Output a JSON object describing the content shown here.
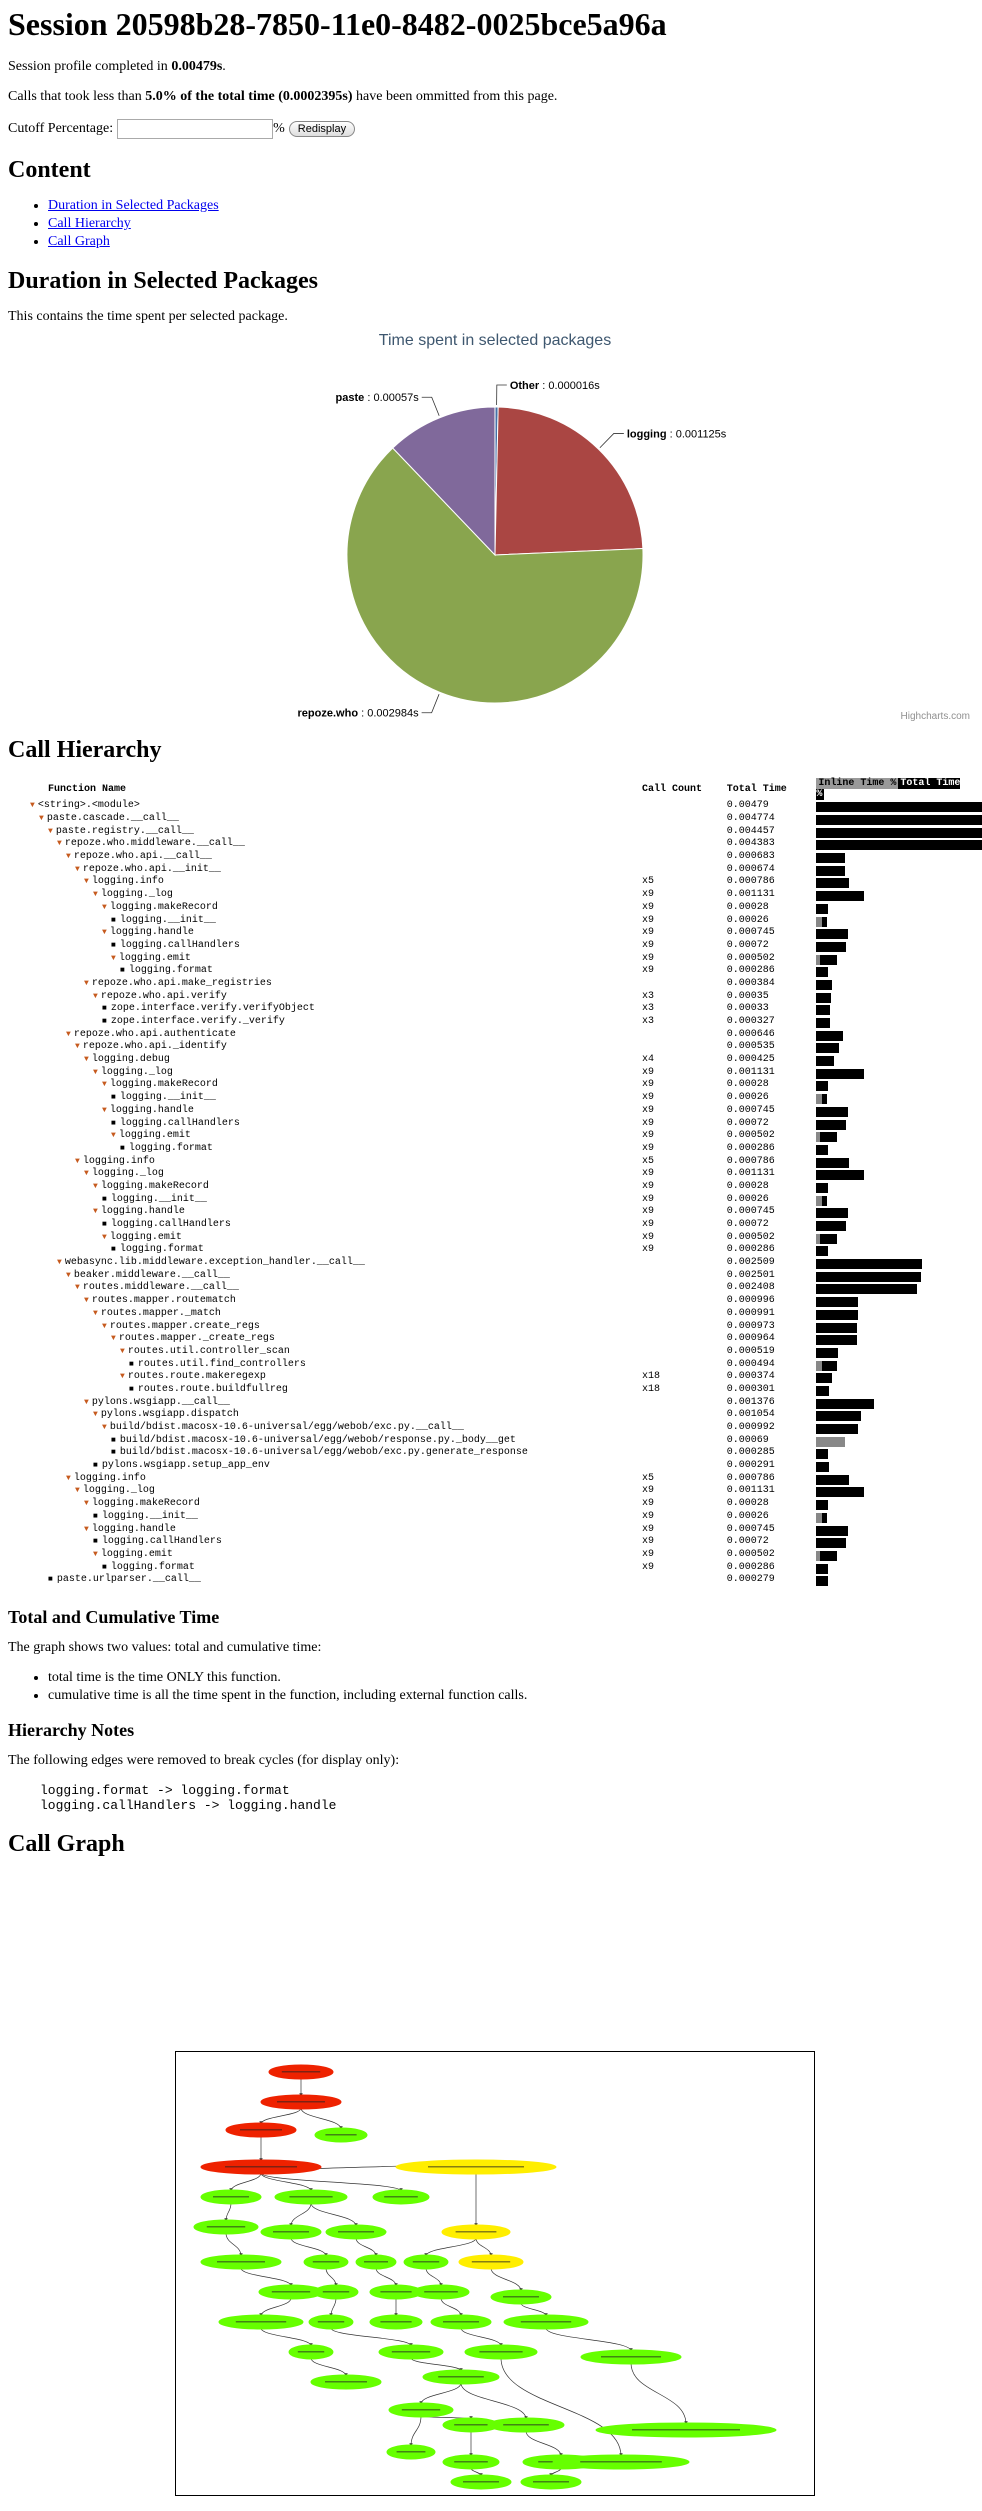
{
  "title": "Session 20598b28-7850-11e0-8482-0025bce5a96a",
  "profile_prefix": "Session profile completed in ",
  "profile_time": "0.00479s",
  "profile_suffix": ".",
  "calls_prefix": "Calls that took less than ",
  "calls_bold": "5.0% of the total time (0.0002395s)",
  "calls_suffix": " have been ommitted from this page.",
  "cutoff": {
    "label": "Cutoff Percentage:",
    "value": "",
    "percent": "%",
    "button": "Redisplay"
  },
  "content": {
    "heading": "Content",
    "links": [
      "Duration in Selected Packages",
      "Call Hierarchy",
      "Call Graph"
    ]
  },
  "duration": {
    "heading": "Duration in Selected Packages",
    "text": "This contains the time spent per selected package."
  },
  "chart_data": {
    "type": "pie",
    "title": "Time spent in selected packages",
    "credit": "Highcharts.com",
    "slices": [
      {
        "name": "Other",
        "value": 1.6e-05,
        "label": "0.000016s",
        "color": "#4572A7"
      },
      {
        "name": "logging",
        "value": 0.001125,
        "label": "0.001125s",
        "color": "#AA4643"
      },
      {
        "name": "repoze.who",
        "value": 0.002984,
        "label": "0.002984s",
        "color": "#89A54E"
      },
      {
        "name": "paste",
        "value": 0.00057,
        "label": "0.00057s",
        "color": "#80699B"
      }
    ]
  },
  "hierarchy": {
    "heading": "Call Hierarchy",
    "columns": [
      "Function Name",
      "Call Count",
      "Total Time",
      "Inline Time %",
      "Total Time %"
    ],
    "rows": [
      {
        "name": "<string>.<module>",
        "indent": 0,
        "mark": "tri",
        "count": "",
        "total": "0.00479",
        "pct": 100,
        "inline": 0
      },
      {
        "name": "paste.cascade.__call__",
        "indent": 1,
        "mark": "tri",
        "count": "",
        "total": "0.004774",
        "pct": 99.7,
        "inline": 0
      },
      {
        "name": "paste.registry.__call__",
        "indent": 2,
        "mark": "tri",
        "count": "",
        "total": "0.004457",
        "pct": 93,
        "inline": 0
      },
      {
        "name": "repoze.who.middleware.__call__",
        "indent": 3,
        "mark": "tri",
        "count": "",
        "total": "0.004383",
        "pct": 91.5,
        "inline": 0
      },
      {
        "name": "repoze.who.api.__call__",
        "indent": 4,
        "mark": "tri",
        "count": "",
        "total": "0.000683",
        "pct": 14.3,
        "inline": 0
      },
      {
        "name": "repoze.who.api.__init__",
        "indent": 5,
        "mark": "tri",
        "count": "",
        "total": "0.000674",
        "pct": 14.1,
        "inline": 0
      },
      {
        "name": "logging.info",
        "indent": 6,
        "mark": "tri",
        "count": "x5",
        "total": "0.000786",
        "pct": 16.4,
        "inline": 0
      },
      {
        "name": "logging._log",
        "indent": 7,
        "mark": "tri",
        "count": "x9",
        "total": "0.001131",
        "pct": 23.6,
        "inline": 0
      },
      {
        "name": "logging.makeRecord",
        "indent": 8,
        "mark": "tri",
        "count": "x9",
        "total": "0.00028",
        "pct": 5.8,
        "inline": 0
      },
      {
        "name": "logging.__init__",
        "indent": 9,
        "mark": "dot",
        "count": "x9",
        "total": "0.00026",
        "pct": 5.4,
        "inline": 3
      },
      {
        "name": "logging.handle",
        "indent": 8,
        "mark": "tri",
        "count": "x9",
        "total": "0.000745",
        "pct": 15.6,
        "inline": 0
      },
      {
        "name": "logging.callHandlers",
        "indent": 9,
        "mark": "dot",
        "count": "x9",
        "total": "0.00072",
        "pct": 15,
        "inline": 0
      },
      {
        "name": "logging.emit",
        "indent": 9,
        "mark": "tri",
        "count": "x9",
        "total": "0.000502",
        "pct": 10.5,
        "inline": 2
      },
      {
        "name": "logging.format",
        "indent": 10,
        "mark": "dot",
        "count": "x9",
        "total": "0.000286",
        "pct": 6,
        "inline": 0
      },
      {
        "name": "repoze.who.api.make_registries",
        "indent": 6,
        "mark": "tri",
        "count": "",
        "total": "0.000384",
        "pct": 8,
        "inline": 0
      },
      {
        "name": "repoze.who.api.verify",
        "indent": 7,
        "mark": "tri",
        "count": "x3",
        "total": "0.00035",
        "pct": 7.3,
        "inline": 0
      },
      {
        "name": "zope.interface.verify.verifyObject",
        "indent": 8,
        "mark": "dot",
        "count": "x3",
        "total": "0.00033",
        "pct": 6.9,
        "inline": 0
      },
      {
        "name": "zope.interface.verify._verify",
        "indent": 8,
        "mark": "dot",
        "count": "x3",
        "total": "0.000327",
        "pct": 6.8,
        "inline": 0
      },
      {
        "name": "repoze.who.api.authenticate",
        "indent": 4,
        "mark": "tri",
        "count": "",
        "total": "0.000646",
        "pct": 13.5,
        "inline": 0
      },
      {
        "name": "repoze.who.api._identify",
        "indent": 5,
        "mark": "tri",
        "count": "",
        "total": "0.000535",
        "pct": 11.2,
        "inline": 0
      },
      {
        "name": "logging.debug",
        "indent": 6,
        "mark": "tri",
        "count": "x4",
        "total": "0.000425",
        "pct": 8.9,
        "inline": 0
      },
      {
        "name": "logging._log",
        "indent": 7,
        "mark": "tri",
        "count": "x9",
        "total": "0.001131",
        "pct": 23.6,
        "inline": 0
      },
      {
        "name": "logging.makeRecord",
        "indent": 8,
        "mark": "tri",
        "count": "x9",
        "total": "0.00028",
        "pct": 5.8,
        "inline": 0
      },
      {
        "name": "logging.__init__",
        "indent": 9,
        "mark": "dot",
        "count": "x9",
        "total": "0.00026",
        "pct": 5.4,
        "inline": 3
      },
      {
        "name": "logging.handle",
        "indent": 8,
        "mark": "tri",
        "count": "x9",
        "total": "0.000745",
        "pct": 15.6,
        "inline": 0
      },
      {
        "name": "logging.callHandlers",
        "indent": 9,
        "mark": "dot",
        "count": "x9",
        "total": "0.00072",
        "pct": 15,
        "inline": 0
      },
      {
        "name": "logging.emit",
        "indent": 9,
        "mark": "tri",
        "count": "x9",
        "total": "0.000502",
        "pct": 10.5,
        "inline": 2
      },
      {
        "name": "logging.format",
        "indent": 10,
        "mark": "dot",
        "count": "x9",
        "total": "0.000286",
        "pct": 6,
        "inline": 0
      },
      {
        "name": "logging.info",
        "indent": 5,
        "mark": "tri",
        "count": "x5",
        "total": "0.000786",
        "pct": 16.4,
        "inline": 0
      },
      {
        "name": "logging._log",
        "indent": 6,
        "mark": "tri",
        "count": "x9",
        "total": "0.001131",
        "pct": 23.6,
        "inline": 0
      },
      {
        "name": "logging.makeRecord",
        "indent": 7,
        "mark": "tri",
        "count": "x9",
        "total": "0.00028",
        "pct": 5.8,
        "inline": 0
      },
      {
        "name": "logging.__init__",
        "indent": 8,
        "mark": "dot",
        "count": "x9",
        "total": "0.00026",
        "pct": 5.4,
        "inline": 3
      },
      {
        "name": "logging.handle",
        "indent": 7,
        "mark": "tri",
        "count": "x9",
        "total": "0.000745",
        "pct": 15.6,
        "inline": 0
      },
      {
        "name": "logging.callHandlers",
        "indent": 8,
        "mark": "dot",
        "count": "x9",
        "total": "0.00072",
        "pct": 15,
        "inline": 0
      },
      {
        "name": "logging.emit",
        "indent": 8,
        "mark": "tri",
        "count": "x9",
        "total": "0.000502",
        "pct": 10.5,
        "inline": 2
      },
      {
        "name": "logging.format",
        "indent": 9,
        "mark": "dot",
        "count": "x9",
        "total": "0.000286",
        "pct": 6,
        "inline": 0
      },
      {
        "name": "webasync.lib.middleware.exception_handler.__call__",
        "indent": 3,
        "mark": "tri",
        "count": "",
        "total": "0.002509",
        "pct": 52.4,
        "inline": 0
      },
      {
        "name": "beaker.middleware.__call__",
        "indent": 4,
        "mark": "tri",
        "count": "",
        "total": "0.002501",
        "pct": 52.2,
        "inline": 0
      },
      {
        "name": "routes.middleware.__call__",
        "indent": 5,
        "mark": "tri",
        "count": "",
        "total": "0.002408",
        "pct": 50.3,
        "inline": 0
      },
      {
        "name": "routes.mapper.routematch",
        "indent": 6,
        "mark": "tri",
        "count": "",
        "total": "0.000996",
        "pct": 20.8,
        "inline": 0
      },
      {
        "name": "routes.mapper._match",
        "indent": 7,
        "mark": "tri",
        "count": "",
        "total": "0.000991",
        "pct": 20.7,
        "inline": 0
      },
      {
        "name": "routes.mapper.create_regs",
        "indent": 8,
        "mark": "tri",
        "count": "",
        "total": "0.000973",
        "pct": 20.3,
        "inline": 0
      },
      {
        "name": "routes.mapper._create_regs",
        "indent": 9,
        "mark": "tri",
        "count": "",
        "total": "0.000964",
        "pct": 20.1,
        "inline": 0
      },
      {
        "name": "routes.util.controller_scan",
        "indent": 10,
        "mark": "tri",
        "count": "",
        "total": "0.000519",
        "pct": 10.8,
        "inline": 0
      },
      {
        "name": "routes.util.find_controllers",
        "indent": 11,
        "mark": "dot",
        "count": "",
        "total": "0.000494",
        "pct": 10.3,
        "inline": 3
      },
      {
        "name": "routes.route.makeregexp",
        "indent": 10,
        "mark": "tri",
        "count": "x18",
        "total": "0.000374",
        "pct": 7.8,
        "inline": 0
      },
      {
        "name": "routes.route.buildfullreg",
        "indent": 11,
        "mark": "dot",
        "count": "x18",
        "total": "0.000301",
        "pct": 6.3,
        "inline": 0
      },
      {
        "name": "pylons.wsgiapp.__call__",
        "indent": 6,
        "mark": "tri",
        "count": "",
        "total": "0.001376",
        "pct": 28.7,
        "inline": 0
      },
      {
        "name": "pylons.wsgiapp.dispatch",
        "indent": 7,
        "mark": "tri",
        "count": "",
        "total": "0.001054",
        "pct": 22,
        "inline": 0
      },
      {
        "name": "build/bdist.macosx-10.6-universal/egg/webob/exc.py.__call__",
        "indent": 8,
        "mark": "tri",
        "count": "",
        "total": "0.000992",
        "pct": 20.7,
        "inline": 0
      },
      {
        "name": "build/bdist.macosx-10.6-universal/egg/webob/response.py._body__get",
        "indent": 9,
        "mark": "dot",
        "count": "",
        "total": "0.00069",
        "pct": 14.4,
        "inline": 14.4
      },
      {
        "name": "build/bdist.macosx-10.6-universal/egg/webob/exc.py.generate_response",
        "indent": 9,
        "mark": "dot",
        "count": "",
        "total": "0.000285",
        "pct": 6,
        "inline": 0
      },
      {
        "name": "pylons.wsgiapp.setup_app_env",
        "indent": 7,
        "mark": "dot",
        "count": "",
        "total": "0.000291",
        "pct": 6.1,
        "inline": 0
      },
      {
        "name": "logging.info",
        "indent": 4,
        "mark": "tri",
        "count": "x5",
        "total": "0.000786",
        "pct": 16.4,
        "inline": 0
      },
      {
        "name": "logging._log",
        "indent": 5,
        "mark": "tri",
        "count": "x9",
        "total": "0.001131",
        "pct": 23.6,
        "inline": 0
      },
      {
        "name": "logging.makeRecord",
        "indent": 6,
        "mark": "tri",
        "count": "x9",
        "total": "0.00028",
        "pct": 5.8,
        "inline": 0
      },
      {
        "name": "logging.__init__",
        "indent": 7,
        "mark": "dot",
        "count": "x9",
        "total": "0.00026",
        "pct": 5.4,
        "inline": 3
      },
      {
        "name": "logging.handle",
        "indent": 6,
        "mark": "tri",
        "count": "x9",
        "total": "0.000745",
        "pct": 15.6,
        "inline": 0
      },
      {
        "name": "logging.callHandlers",
        "indent": 7,
        "mark": "dot",
        "count": "x9",
        "total": "0.00072",
        "pct": 15,
        "inline": 0
      },
      {
        "name": "logging.emit",
        "indent": 7,
        "mark": "tri",
        "count": "x9",
        "total": "0.000502",
        "pct": 10.5,
        "inline": 2
      },
      {
        "name": "logging.format",
        "indent": 8,
        "mark": "dot",
        "count": "x9",
        "total": "0.000286",
        "pct": 6,
        "inline": 0
      },
      {
        "name": "paste.urlparser.__call__",
        "indent": 2,
        "mark": "dot",
        "count": "",
        "total": "0.000279",
        "pct": 5.8,
        "inline": 0
      }
    ]
  },
  "total_cumulative": {
    "heading": "Total and Cumulative Time",
    "text": "The graph shows two values: total and cumulative time:",
    "items": [
      "total time is the time ONLY this function.",
      "cumulative time is all the time spent in the function, including external function calls."
    ]
  },
  "hierarchy_notes": {
    "heading": "Hierarchy Notes",
    "text": "The following edges were removed to break cycles (for display only):",
    "edges": "logging.format -> logging.format\nlogging.callHandlers -> logging.handle"
  },
  "call_graph": {
    "heading": "Call Graph",
    "colors": {
      "hot": "#ee2200",
      "warm": "#ffee00",
      "cool": "#66ff00"
    }
  }
}
